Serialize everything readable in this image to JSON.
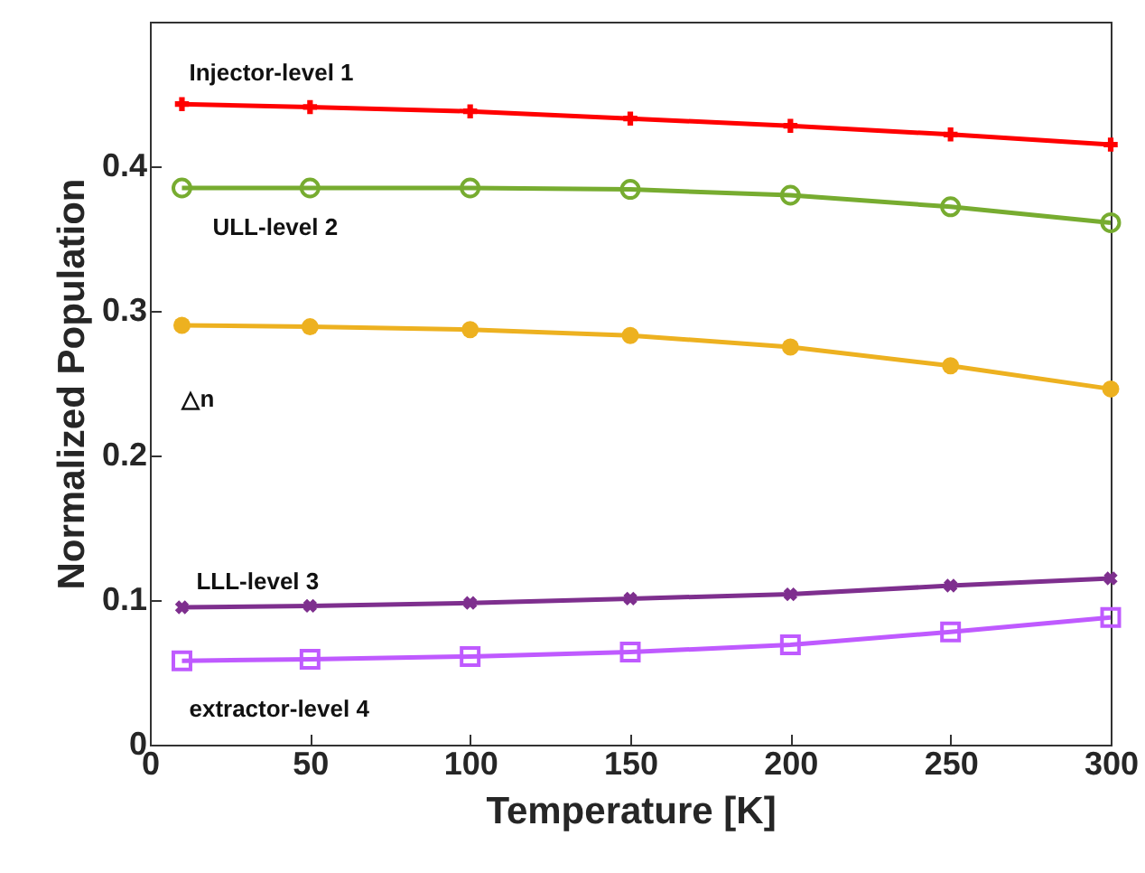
{
  "chart_data": {
    "type": "line",
    "xlabel": "Temperature [K]",
    "ylabel": "Normalized Population",
    "x": [
      10,
      50,
      100,
      150,
      200,
      250,
      300
    ],
    "xlim": [
      0,
      300
    ],
    "xticks": [
      0,
      50,
      100,
      150,
      200,
      250,
      300
    ],
    "ylim": [
      0,
      0.5
    ],
    "yticks": [
      0,
      0.1,
      0.2,
      0.3,
      0.4
    ],
    "grid": false,
    "line_style": "solid",
    "series": [
      {
        "name": "Injector-level 1",
        "color": "#ff0000",
        "marker": "cross",
        "values": [
          0.443,
          0.441,
          0.438,
          0.433,
          0.428,
          0.422,
          0.415
        ]
      },
      {
        "name": "ULL-level 2",
        "color": "#77ac30",
        "marker": "circle",
        "values": [
          0.385,
          0.385,
          0.385,
          0.384,
          0.38,
          0.372,
          0.361
        ]
      },
      {
        "name": "△n",
        "color": "#edb120",
        "marker": "circle",
        "values": [
          0.29,
          0.289,
          0.287,
          0.283,
          0.275,
          0.262,
          0.246
        ]
      },
      {
        "name": "LLL-level 3",
        "color": "#7e2f8e",
        "marker": "cross",
        "values": [
          0.095,
          0.096,
          0.098,
          0.101,
          0.104,
          0.11,
          0.115
        ]
      },
      {
        "name": "extractor-level 4",
        "color": "#bf5aff",
        "marker": "square",
        "values": [
          0.058,
          0.059,
          0.061,
          0.064,
          0.069,
          0.078,
          0.088
        ]
      }
    ]
  }
}
